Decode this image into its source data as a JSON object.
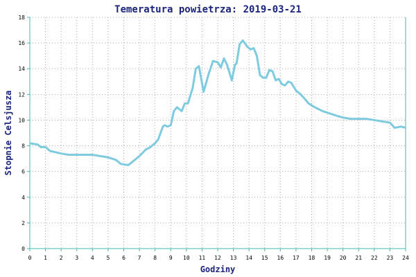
{
  "chart_data": {
    "type": "line",
    "title": "Temeratura powietrza: 2019-03-21",
    "xlabel": "Godziny",
    "ylabel": "Stopnie Celsjusza",
    "x": [
      0,
      0.5,
      0.7,
      1.0,
      1.3,
      2.0,
      2.5,
      3.0,
      3.5,
      4.0,
      4.5,
      5.0,
      5.5,
      5.8,
      6.0,
      6.3,
      6.5,
      7.0,
      7.4,
      7.7,
      8.0,
      8.2,
      8.5,
      8.6,
      8.8,
      9.0,
      9.2,
      9.4,
      9.7,
      9.9,
      10.1,
      10.4,
      10.6,
      10.8,
      11.1,
      11.4,
      11.7,
      12.0,
      12.2,
      12.4,
      12.6,
      12.8,
      12.9,
      13.1,
      13.2,
      13.4,
      13.6,
      13.9,
      14.1,
      14.3,
      14.5,
      14.7,
      14.9,
      15.1,
      15.3,
      15.5,
      15.7,
      15.9,
      16.1,
      16.3,
      16.5,
      16.7,
      17.0,
      17.3,
      17.6,
      17.8,
      18.2,
      18.7,
      19.2,
      19.7,
      20.0,
      20.5,
      21.0,
      21.5,
      22.0,
      22.5,
      23.0,
      23.3,
      23.7,
      24.0
    ],
    "series": [
      {
        "color": "#7ecbe0",
        "values": [
          8.2,
          8.1,
          7.9,
          7.9,
          7.6,
          7.4,
          7.3,
          7.3,
          7.3,
          7.3,
          7.2,
          7.1,
          6.9,
          6.6,
          6.55,
          6.5,
          6.7,
          7.2,
          7.7,
          7.9,
          8.2,
          8.5,
          9.5,
          9.6,
          9.5,
          9.6,
          10.7,
          11.0,
          10.7,
          11.3,
          11.3,
          12.5,
          14.0,
          14.2,
          12.2,
          13.5,
          14.6,
          14.5,
          14.1,
          14.8,
          14.3,
          13.5,
          13.1,
          14.3,
          14.4,
          15.9,
          16.2,
          15.7,
          15.5,
          15.6,
          15.0,
          13.5,
          13.3,
          13.3,
          13.9,
          13.8,
          13.1,
          13.2,
          12.8,
          12.7,
          13.0,
          12.9,
          12.3,
          12.0,
          11.6,
          11.3,
          11.0,
          10.7,
          10.5,
          10.3,
          10.2,
          10.1,
          10.1,
          10.1,
          10.0,
          9.9,
          9.8,
          9.4,
          9.5,
          9.4
        ]
      }
    ],
    "xlim": [
      0,
      24
    ],
    "xticks": [
      0,
      1,
      2,
      3,
      4,
      5,
      6,
      7,
      8,
      9,
      10,
      11,
      12,
      13,
      14,
      15,
      16,
      17,
      18,
      19,
      20,
      21,
      22,
      23,
      24
    ],
    "ylim": [
      0,
      18
    ],
    "yticks": [
      0,
      2,
      4,
      6,
      8,
      10,
      12,
      14,
      16,
      18
    ],
    "grid": true
  }
}
